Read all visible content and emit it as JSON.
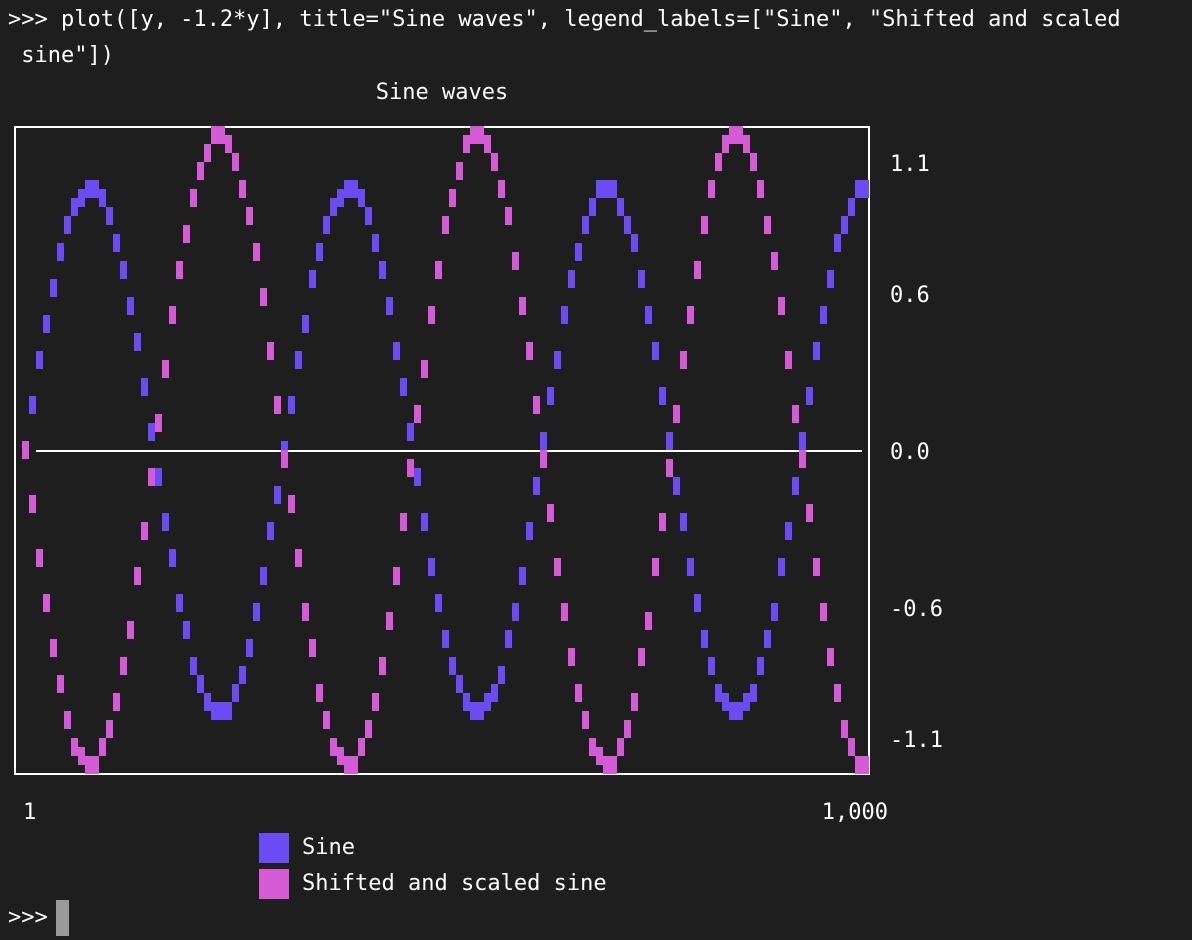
{
  "terminal": {
    "command_line_1": ">>> plot([y, -1.2*y], title=\"Sine waves\", legend_labels=[\"Sine\", \"Shifted and scaled",
    "command_line_2": " sine\"])",
    "prompt": ">>>"
  },
  "colors": {
    "background": "#1e1e1e",
    "frame": "#ffffff",
    "sine": "#6a4cf2",
    "shifted": "#d45ad6"
  },
  "chart_data": {
    "type": "line",
    "title": "Sine waves",
    "x_range": [
      1,
      1000
    ],
    "x_tick_labels": [
      "1",
      "1,000"
    ],
    "y_range": [
      -1.2,
      1.2
    ],
    "y_ticks": [
      1.1,
      0.6,
      0.0,
      -0.6,
      -1.1
    ],
    "y_tick_labels": [
      "1.1",
      "0.6",
      "0.0",
      "-0.6",
      "-1.1"
    ],
    "cycles": 3.25,
    "series": [
      {
        "name": "Sine",
        "amplitude": 1.0,
        "color": "#6a4cf2"
      },
      {
        "name": "Shifted and scaled sine",
        "amplitude": -1.2,
        "color": "#d45ad6"
      }
    ],
    "legend": [
      "Sine",
      "Shifted and scaled sine"
    ],
    "legend_placement": "bottom"
  }
}
